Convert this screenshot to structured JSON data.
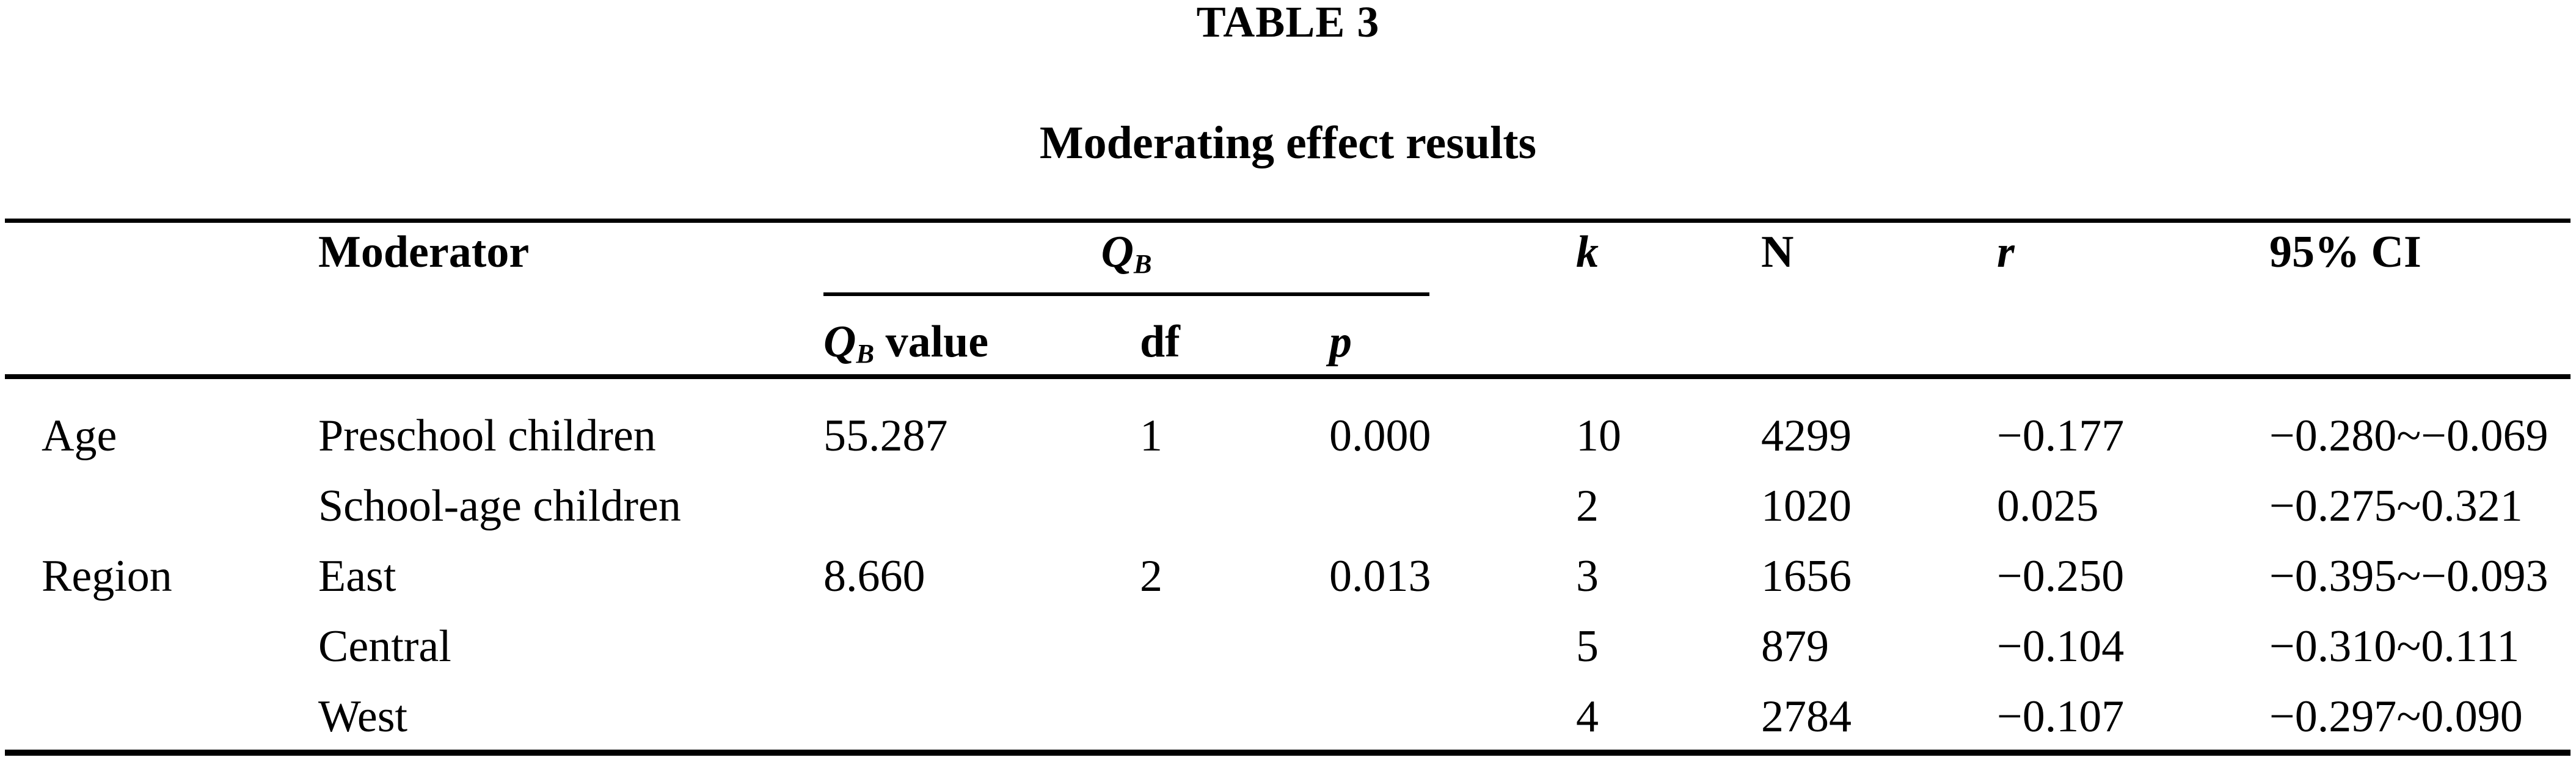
{
  "title": "TABLE 3",
  "subtitle": "Moderating effect results",
  "table": {
    "col_headers": {
      "moderator": "Moderator",
      "qb_group": {
        "q": "Q",
        "sub": "B"
      },
      "qb_value": {
        "q": "Q",
        "sub": "B",
        "suffix": " value"
      },
      "df": "df",
      "p": "p",
      "k": "k",
      "n": "N",
      "r": "r",
      "ci": "95% CI"
    },
    "rows": [
      {
        "group": "Age",
        "moderator": "Preschool children",
        "qb_value": "55.287",
        "df": "1",
        "p": "0.000",
        "k": "10",
        "n": "4299",
        "r": "−0.177",
        "ci": "−0.280~−0.069"
      },
      {
        "group": "",
        "moderator": "School-age children",
        "qb_value": "",
        "df": "",
        "p": "",
        "k": "2",
        "n": "1020",
        "r": "0.025",
        "ci": "−0.275~0.321"
      },
      {
        "group": "Region",
        "moderator": "East",
        "qb_value": "8.660",
        "df": "2",
        "p": "0.013",
        "k": "3",
        "n": "1656",
        "r": "−0.250",
        "ci": "−0.395~−0.093"
      },
      {
        "group": "",
        "moderator": "Central",
        "qb_value": "",
        "df": "",
        "p": "",
        "k": "5",
        "n": "879",
        "r": "−0.104",
        "ci": "−0.310~0.111"
      },
      {
        "group": "",
        "moderator": "West",
        "qb_value": "",
        "df": "",
        "p": "",
        "k": "4",
        "n": "2784",
        "r": "−0.107",
        "ci": "−0.297~0.090"
      }
    ]
  }
}
